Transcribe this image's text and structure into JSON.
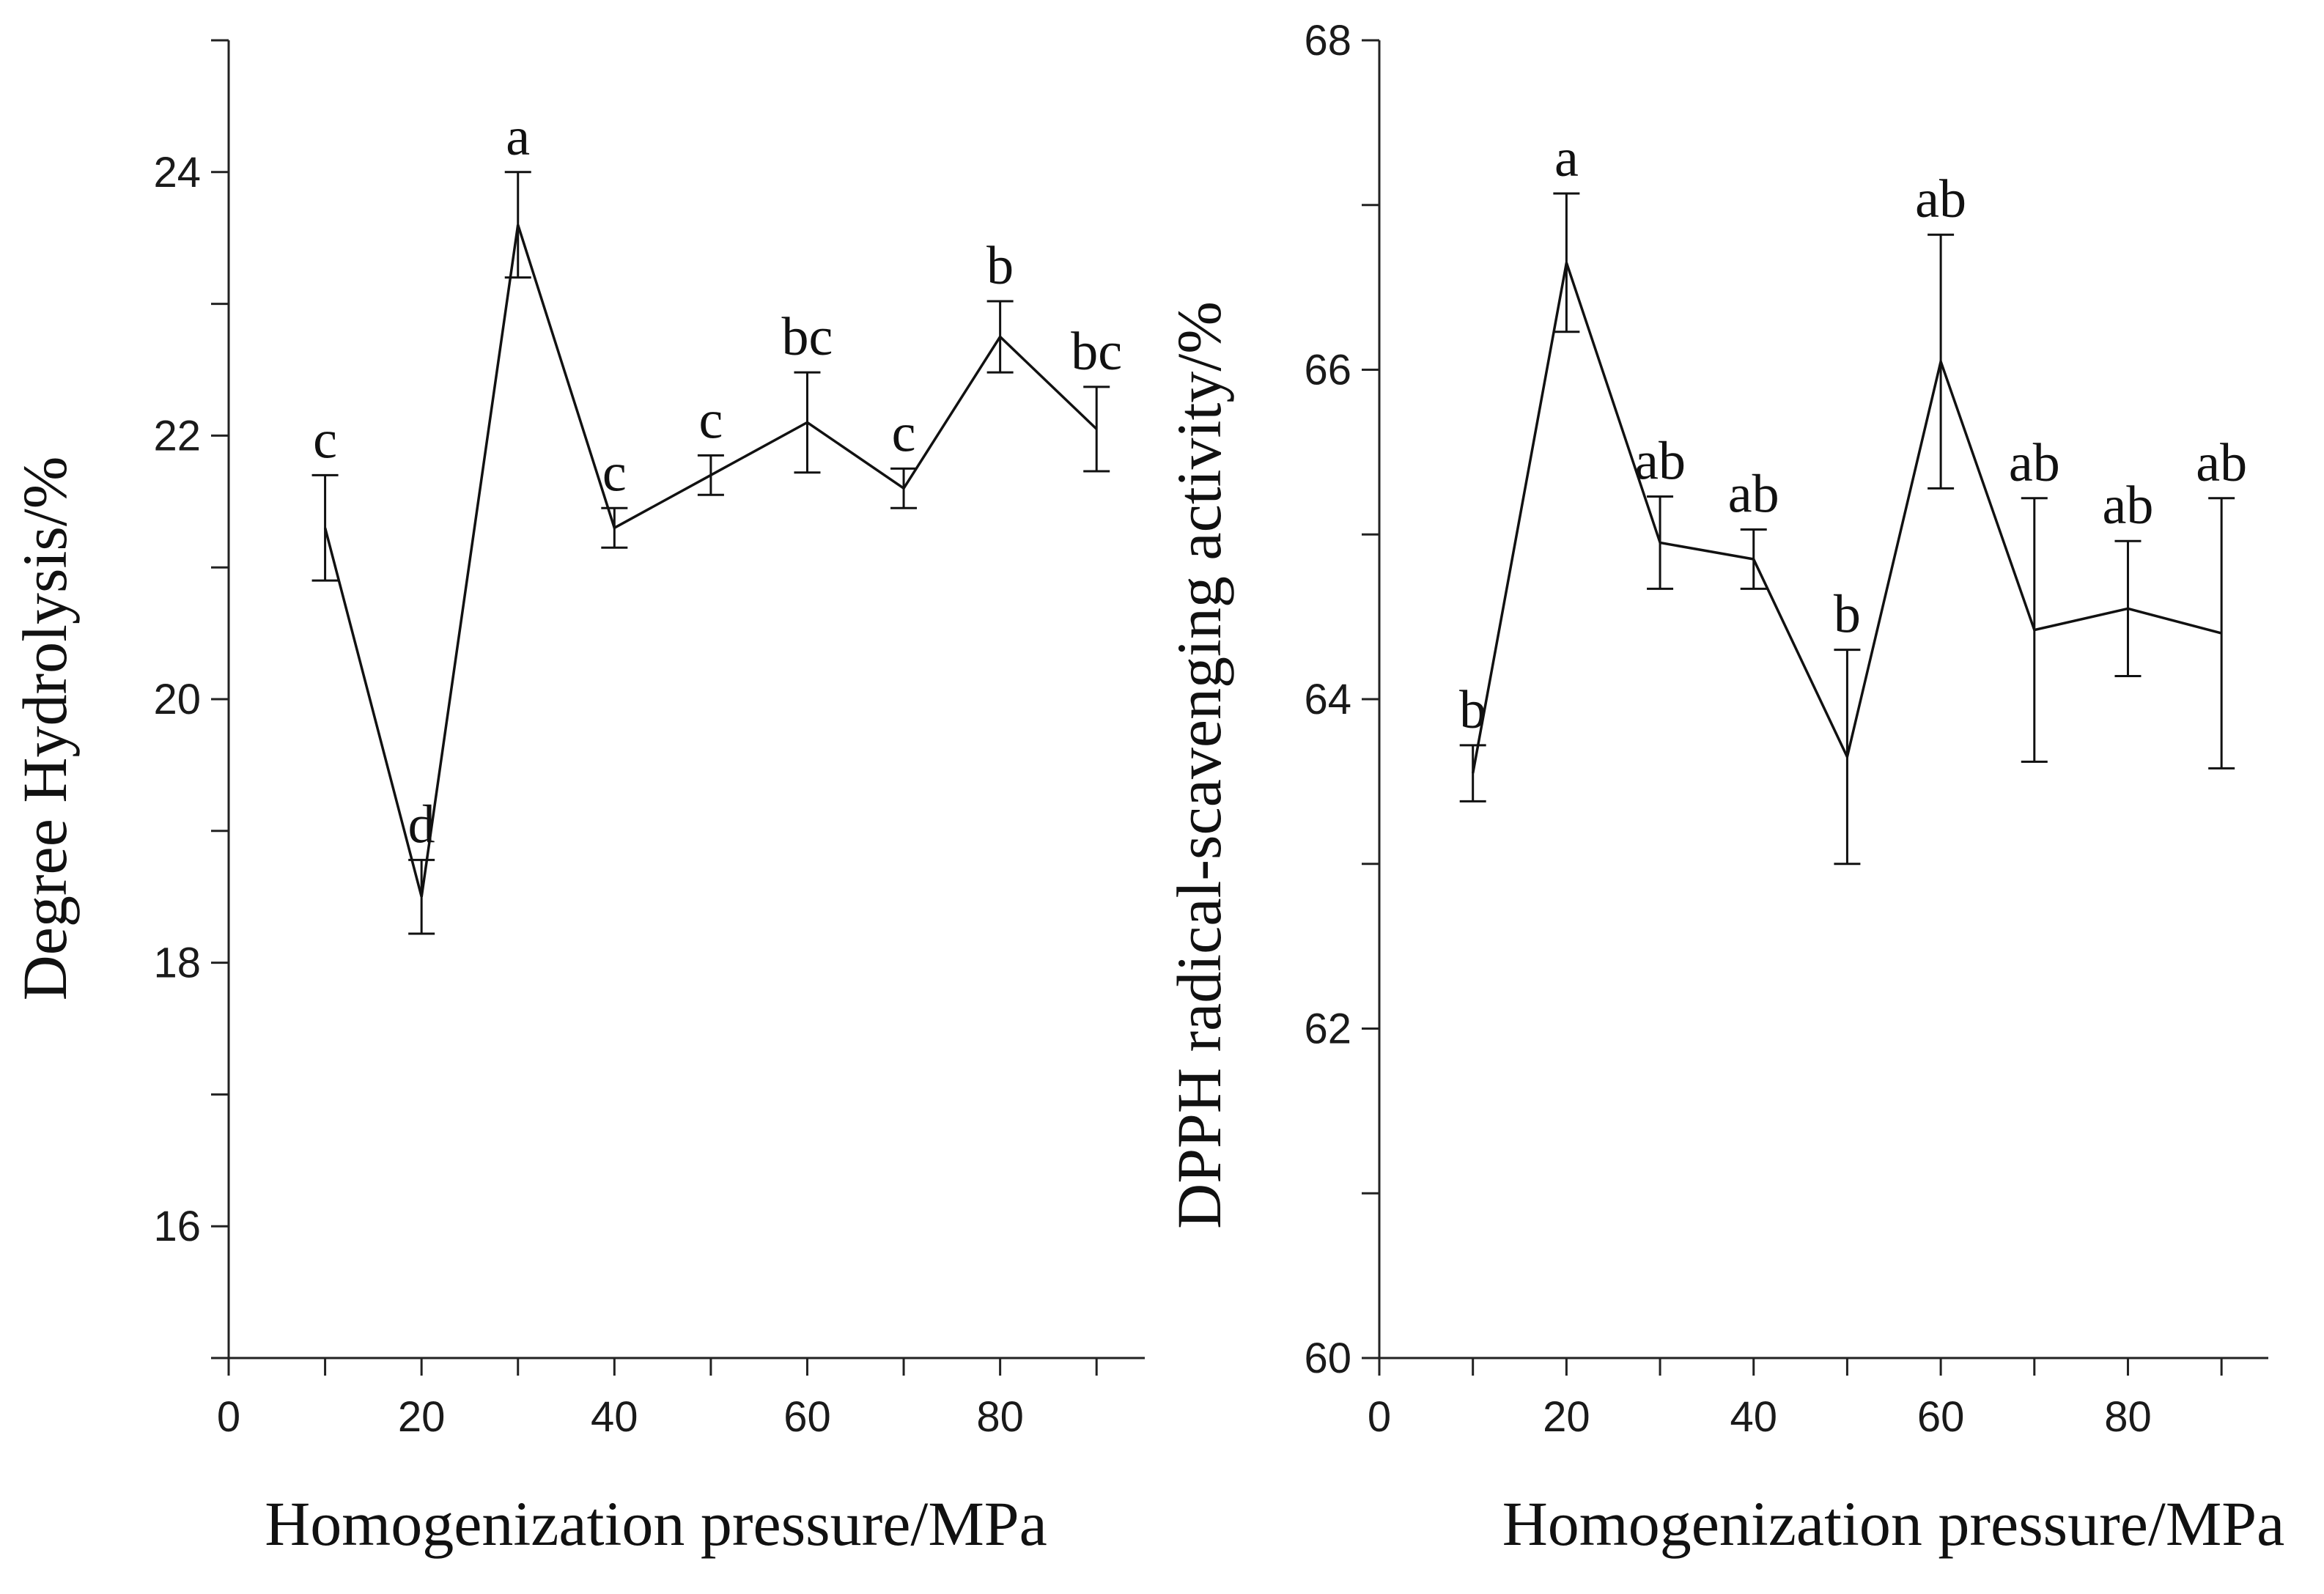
{
  "chart_data": [
    {
      "type": "line",
      "xlabel": "Homogenization pressure/MPa",
      "ylabel": "Degree Hydrolysis/%",
      "xlim": [
        0,
        95
      ],
      "ylim": [
        15,
        25
      ],
      "xticks": [
        0,
        20,
        40,
        60,
        80
      ],
      "yticks": [
        16,
        18,
        20,
        22,
        24
      ],
      "series": [
        {
          "name": "Degree Hydrolysis",
          "x": [
            10,
            20,
            30,
            40,
            50,
            60,
            70,
            80,
            90
          ],
          "values": [
            21.3,
            18.5,
            23.6,
            21.3,
            21.7,
            22.1,
            21.6,
            22.75,
            22.05
          ],
          "errors": [
            0.4,
            0.28,
            0.4,
            0.15,
            0.15,
            0.38,
            0.15,
            0.27,
            0.32
          ],
          "labels": [
            "c",
            "d",
            "a",
            "c",
            "c",
            "bc",
            "c",
            "b",
            "bc"
          ]
        }
      ]
    },
    {
      "type": "line",
      "xlabel": "Homogenization pressure/MPa",
      "ylabel": "DPPH radical-scavenging activity/%",
      "xlim": [
        0,
        95
      ],
      "ylim": [
        60,
        68
      ],
      "xticks": [
        0,
        20,
        40,
        60,
        80
      ],
      "yticks": [
        60,
        62,
        64,
        66,
        68
      ],
      "series": [
        {
          "name": "DPPH radical-scavenging activity",
          "x": [
            10,
            20,
            30,
            40,
            50,
            60,
            70,
            80,
            90
          ],
          "values": [
            63.55,
            66.65,
            64.95,
            64.85,
            63.65,
            66.05,
            64.42,
            64.55,
            64.4
          ],
          "errors": [
            0.17,
            0.42,
            0.28,
            0.18,
            0.65,
            0.77,
            0.8,
            0.41,
            0.82
          ],
          "labels": [
            "b",
            "a",
            "ab",
            "ab",
            "b",
            "ab",
            "ab",
            "ab",
            "ab"
          ]
        }
      ]
    }
  ]
}
